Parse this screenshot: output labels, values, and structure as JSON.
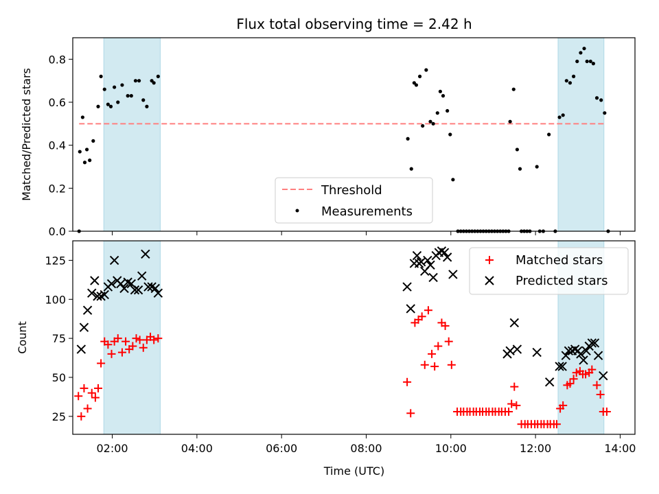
{
  "figure": {
    "title": "Flux total observing time = 2.42 h",
    "xlabel": "Time (UTC)",
    "x_ticks": [
      "02:00",
      "04:00",
      "06:00",
      "08:00",
      "10:00",
      "12:00",
      "14:00"
    ]
  },
  "colors": {
    "threshold": "#ff7f7f",
    "shade": "#add8e6",
    "measurement": "#000000",
    "matched": "#ff0000",
    "predicted": "#000000"
  },
  "chart_data": [
    {
      "type": "scatter",
      "ylabel": "Matched/Predicted stars",
      "xlim": [
        "01:04",
        "14:21"
      ],
      "ylim": [
        0,
        0.9
      ],
      "y_ticks": [
        "0.0",
        "0.2",
        "0.4",
        "0.6",
        "0.8"
      ],
      "shaded_spans": [
        [
          "01:48",
          "03:08"
        ],
        [
          "12:32",
          "13:37"
        ]
      ],
      "threshold": {
        "name": "Threshold",
        "y": 0.5,
        "x_range": [
          "01:13",
          "13:37"
        ]
      },
      "legend": {
        "placement": "lower center",
        "entries": [
          "Threshold",
          "Measurements"
        ]
      },
      "series": [
        {
          "name": "Measurements",
          "marker": "dot",
          "points": [
            [
              "01:13",
              0.0
            ],
            [
              "01:14",
              0.37
            ],
            [
              "01:18",
              0.53
            ],
            [
              "01:21",
              0.32
            ],
            [
              "01:24",
              0.38
            ],
            [
              "01:28",
              0.33
            ],
            [
              "01:33",
              0.42
            ],
            [
              "01:40",
              0.58
            ],
            [
              "01:44",
              0.72
            ],
            [
              "01:49",
              0.66
            ],
            [
              "01:54",
              0.59
            ],
            [
              "01:58",
              0.58
            ],
            [
              "02:03",
              0.67
            ],
            [
              "02:08",
              0.6
            ],
            [
              "02:14",
              0.68
            ],
            [
              "02:22",
              0.63
            ],
            [
              "02:27",
              0.63
            ],
            [
              "02:33",
              0.7
            ],
            [
              "02:38",
              0.7
            ],
            [
              "02:44",
              0.61
            ],
            [
              "02:49",
              0.58
            ],
            [
              "02:56",
              0.7
            ],
            [
              "02:59",
              0.69
            ],
            [
              "03:05",
              0.72
            ],
            [
              "08:59",
              0.43
            ],
            [
              "09:04",
              0.29
            ],
            [
              "09:08",
              0.69
            ],
            [
              "09:11",
              0.68
            ],
            [
              "09:16",
              0.72
            ],
            [
              "09:20",
              0.49
            ],
            [
              "09:25",
              0.75
            ],
            [
              "09:31",
              0.51
            ],
            [
              "09:35",
              0.5
            ],
            [
              "09:41",
              0.55
            ],
            [
              "09:45",
              0.65
            ],
            [
              "09:49",
              0.63
            ],
            [
              "09:55",
              0.56
            ],
            [
              "09:59",
              0.45
            ],
            [
              "10:03",
              0.24
            ],
            [
              "10:10",
              0.0
            ],
            [
              "10:14",
              0.0
            ],
            [
              "10:18",
              0.0
            ],
            [
              "10:22",
              0.0
            ],
            [
              "10:26",
              0.0
            ],
            [
              "10:30",
              0.0
            ],
            [
              "10:34",
              0.0
            ],
            [
              "10:38",
              0.0
            ],
            [
              "10:42",
              0.0
            ],
            [
              "10:46",
              0.0
            ],
            [
              "10:50",
              0.0
            ],
            [
              "10:54",
              0.0
            ],
            [
              "10:58",
              0.0
            ],
            [
              "11:02",
              0.0
            ],
            [
              "11:06",
              0.0
            ],
            [
              "11:10",
              0.0
            ],
            [
              "11:14",
              0.0
            ],
            [
              "11:18",
              0.0
            ],
            [
              "11:22",
              0.0
            ],
            [
              "11:24",
              0.51
            ],
            [
              "11:29",
              0.66
            ],
            [
              "11:34",
              0.38
            ],
            [
              "11:38",
              0.29
            ],
            [
              "11:40",
              0.0
            ],
            [
              "11:44",
              0.0
            ],
            [
              "11:48",
              0.0
            ],
            [
              "11:52",
              0.0
            ],
            [
              "12:02",
              0.3
            ],
            [
              "12:06",
              0.0
            ],
            [
              "12:11",
              0.0
            ],
            [
              "12:19",
              0.45
            ],
            [
              "12:28",
              0.0
            ],
            [
              "12:34",
              0.53
            ],
            [
              "12:39",
              0.54
            ],
            [
              "12:44",
              0.7
            ],
            [
              "12:49",
              0.69
            ],
            [
              "12:54",
              0.72
            ],
            [
              "12:59",
              0.79
            ],
            [
              "13:04",
              0.83
            ],
            [
              "13:09",
              0.85
            ],
            [
              "13:13",
              0.79
            ],
            [
              "13:18",
              0.79
            ],
            [
              "13:22",
              0.78
            ],
            [
              "13:27",
              0.62
            ],
            [
              "13:33",
              0.61
            ],
            [
              "13:38",
              0.55
            ],
            [
              "13:43",
              0.0
            ]
          ]
        }
      ]
    },
    {
      "type": "scatter",
      "ylabel": "Count",
      "xlim": [
        "01:04",
        "14:21"
      ],
      "ylim": [
        13.5,
        137.5
      ],
      "y_ticks": [
        "25",
        "50",
        "75",
        "100",
        "125"
      ],
      "shaded_spans": [
        [
          "01:48",
          "03:08"
        ],
        [
          "12:32",
          "13:37"
        ]
      ],
      "legend": {
        "placement": "top-right",
        "entries": [
          "Matched stars",
          "Predicted stars"
        ]
      },
      "series": [
        {
          "name": "Matched stars",
          "marker": "plus",
          "points": [
            [
              "01:12",
              38
            ],
            [
              "01:16",
              25
            ],
            [
              "01:20",
              43
            ],
            [
              "01:25",
              30
            ],
            [
              "01:31",
              40
            ],
            [
              "01:36",
              37
            ],
            [
              "01:40",
              43
            ],
            [
              "01:44",
              59
            ],
            [
              "01:49",
              73
            ],
            [
              "01:54",
              71
            ],
            [
              "01:59",
              65
            ],
            [
              "02:03",
              73
            ],
            [
              "02:08",
              75
            ],
            [
              "02:14",
              66
            ],
            [
              "02:19",
              73
            ],
            [
              "02:24",
              68
            ],
            [
              "02:29",
              70
            ],
            [
              "02:34",
              75
            ],
            [
              "02:39",
              74
            ],
            [
              "02:44",
              69
            ],
            [
              "02:49",
              74
            ],
            [
              "02:54",
              76
            ],
            [
              "02:59",
              74
            ],
            [
              "03:05",
              75
            ],
            [
              "08:58",
              47
            ],
            [
              "09:03",
              27
            ],
            [
              "09:09",
              85
            ],
            [
              "09:14",
              87
            ],
            [
              "09:19",
              89
            ],
            [
              "09:23",
              58
            ],
            [
              "09:28",
              93
            ],
            [
              "09:33",
              65
            ],
            [
              "09:37",
              57
            ],
            [
              "09:42",
              70
            ],
            [
              "09:47",
              85
            ],
            [
              "09:52",
              83
            ],
            [
              "09:57",
              73
            ],
            [
              "10:01",
              58
            ],
            [
              "10:09",
              28
            ],
            [
              "10:14",
              28
            ],
            [
              "10:18",
              28
            ],
            [
              "10:23",
              28
            ],
            [
              "10:27",
              28
            ],
            [
              "10:32",
              28
            ],
            [
              "10:36",
              28
            ],
            [
              "10:41",
              28
            ],
            [
              "10:45",
              28
            ],
            [
              "10:50",
              28
            ],
            [
              "10:54",
              28
            ],
            [
              "10:59",
              28
            ],
            [
              "11:03",
              28
            ],
            [
              "11:08",
              28
            ],
            [
              "11:12",
              28
            ],
            [
              "11:17",
              28
            ],
            [
              "11:22",
              28
            ],
            [
              "11:26",
              33
            ],
            [
              "11:30",
              44
            ],
            [
              "11:33",
              32
            ],
            [
              "11:40",
              20
            ],
            [
              "11:45",
              20
            ],
            [
              "11:49",
              20
            ],
            [
              "11:54",
              20
            ],
            [
              "11:59",
              20
            ],
            [
              "12:03",
              20
            ],
            [
              "12:08",
              20
            ],
            [
              "12:12",
              20
            ],
            [
              "12:17",
              20
            ],
            [
              "12:21",
              20
            ],
            [
              "12:26",
              20
            ],
            [
              "12:30",
              20
            ],
            [
              "12:35",
              30
            ],
            [
              "12:39",
              32
            ],
            [
              "12:45",
              45
            ],
            [
              "12:49",
              46
            ],
            [
              "12:54",
              49
            ],
            [
              "12:58",
              53
            ],
            [
              "13:03",
              54
            ],
            [
              "13:07",
              52
            ],
            [
              "13:11",
              52
            ],
            [
              "13:16",
              53
            ],
            [
              "13:20",
              55
            ],
            [
              "13:27",
              45
            ],
            [
              "13:32",
              39
            ],
            [
              "13:36",
              28
            ],
            [
              "13:41",
              28
            ]
          ]
        },
        {
          "name": "Predicted stars",
          "marker": "x",
          "points": [
            [
              "01:16",
              68
            ],
            [
              "01:20",
              82
            ],
            [
              "01:25",
              93
            ],
            [
              "01:31",
              104
            ],
            [
              "01:35",
              112
            ],
            [
              "01:39",
              102
            ],
            [
              "01:44",
              102
            ],
            [
              "01:49",
              103
            ],
            [
              "01:54",
              108
            ],
            [
              "01:59",
              110
            ],
            [
              "02:03",
              125
            ],
            [
              "02:07",
              112
            ],
            [
              "02:12",
              110
            ],
            [
              "02:17",
              107
            ],
            [
              "02:22",
              111
            ],
            [
              "02:27",
              110
            ],
            [
              "02:32",
              106
            ],
            [
              "02:37",
              106
            ],
            [
              "02:42",
              115
            ],
            [
              "02:47",
              129
            ],
            [
              "02:51",
              108
            ],
            [
              "02:56",
              108
            ],
            [
              "03:01",
              107
            ],
            [
              "03:05",
              104
            ],
            [
              "08:58",
              108
            ],
            [
              "09:03",
              94
            ],
            [
              "09:08",
              123
            ],
            [
              "09:12",
              128
            ],
            [
              "09:15",
              123
            ],
            [
              "09:18",
              124
            ],
            [
              "09:23",
              118
            ],
            [
              "09:27",
              125
            ],
            [
              "09:31",
              122
            ],
            [
              "09:35",
              114
            ],
            [
              "09:39",
              128
            ],
            [
              "09:43",
              130
            ],
            [
              "09:47",
              131
            ],
            [
              "09:51",
              130
            ],
            [
              "09:55",
              127
            ],
            [
              "10:03",
              116
            ],
            [
              "11:20",
              65
            ],
            [
              "11:24",
              67
            ],
            [
              "11:30",
              85
            ],
            [
              "11:34",
              68
            ],
            [
              "12:02",
              66
            ],
            [
              "12:20",
              47
            ],
            [
              "12:34",
              57
            ],
            [
              "12:38",
              57
            ],
            [
              "12:43",
              64
            ],
            [
              "12:47",
              67
            ],
            [
              "12:52",
              67
            ],
            [
              "12:56",
              68
            ],
            [
              "13:00",
              67
            ],
            [
              "13:04",
              65
            ],
            [
              "13:08",
              61
            ],
            [
              "13:12",
              67
            ],
            [
              "13:16",
              70
            ],
            [
              "13:20",
              72
            ],
            [
              "13:24",
              72
            ],
            [
              "13:29",
              64
            ],
            [
              "13:36",
              51
            ]
          ]
        }
      ]
    }
  ]
}
